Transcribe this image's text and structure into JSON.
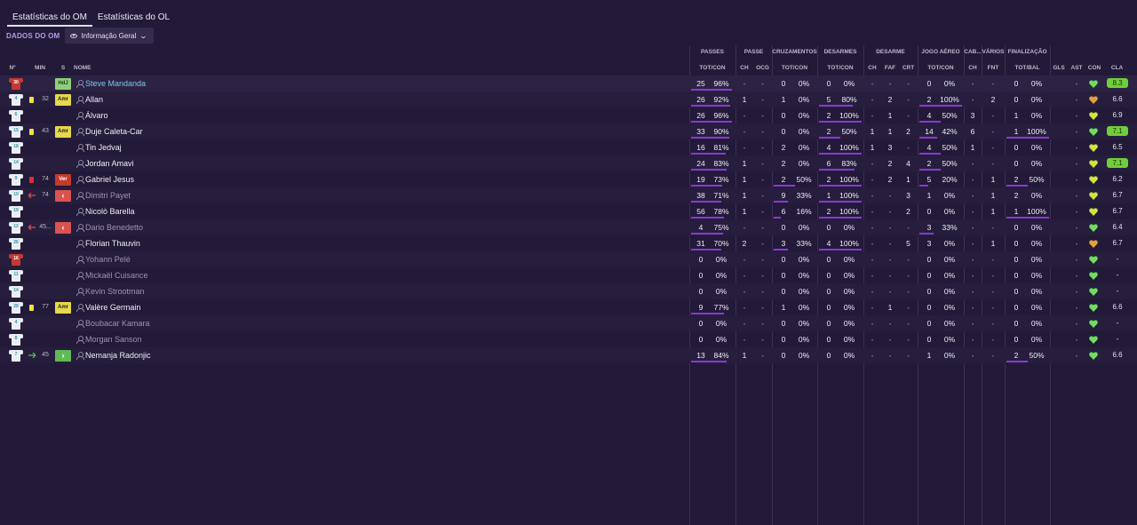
{
  "tabs": [
    {
      "label": "Estatísticas do OM",
      "active": true
    },
    {
      "label": "Estatísticas do OL",
      "active": false
    }
  ],
  "club_label": "DADOS DO OM",
  "view_select": {
    "label": "Informação Geral",
    "icon": "eye-icon"
  },
  "columns": {
    "left": [
      "Nº",
      "MIN",
      "S",
      "NOME"
    ],
    "groups": [
      "PASSES",
      "PASSE",
      "CRUZAMENTOS",
      "DESARMES",
      "DESARME",
      "JOGO AÉREO",
      "CAB...",
      "VÁRIOS",
      "FINALIZAÇÃO"
    ],
    "stats": [
      "TOT/CON",
      "CH",
      "OCG",
      "TOT/CON",
      "TOT/CON",
      "CH",
      "FAF",
      "CRT",
      "TOT/CON",
      "CH",
      "FNT",
      "TOT/BAL",
      "GLS",
      "AST",
      "CON",
      "CLA"
    ]
  },
  "colors": {
    "background": "#231a39",
    "accent": "#8b38d6",
    "rating_high": "#6fcf3a",
    "link": "#7cc6e8"
  },
  "players": [
    {
      "num": "30",
      "gk": true,
      "card": "",
      "sub": "",
      "min": "",
      "pos": "HdJ",
      "pos_type": "hdj",
      "name": "Steve Mandanda",
      "name_style": "link",
      "pass_tot": "25",
      "pass_pct": "96%",
      "pass_bar": 0.96,
      "pass_ch": "-",
      "pass_ocg": "-",
      "cross_tot": "0",
      "cross_pct": "0%",
      "cross_bar": 0,
      "tack_tot": "0",
      "tack_pct": "0%",
      "tack_bar": 0,
      "des_ch": "-",
      "des_faf": "-",
      "des_crt": "-",
      "air_tot": "0",
      "air_pct": "0%",
      "air_bar": 0,
      "cab_ch": "-",
      "var_fnt": "-",
      "fin_tot": "0",
      "fin_pct": "0%",
      "fin_bar": 0,
      "gls": "",
      "ast": "-",
      "con": "green",
      "cla": "8.3",
      "cla_high": true
    },
    {
      "num": "4",
      "gk": false,
      "card": "y",
      "sub": "",
      "min": "32",
      "pos": "Amr",
      "pos_type": "amr",
      "name": "Allan",
      "name_style": "",
      "pass_tot": "26",
      "pass_pct": "92%",
      "pass_bar": 0.92,
      "pass_ch": "1",
      "pass_ocg": "-",
      "cross_tot": "1",
      "cross_pct": "0%",
      "cross_bar": 0,
      "tack_tot": "5",
      "tack_pct": "80%",
      "tack_bar": 0.8,
      "des_ch": "-",
      "des_faf": "2",
      "des_crt": "-",
      "air_tot": "2",
      "air_pct": "100%",
      "air_bar": 1,
      "cab_ch": "-",
      "var_fnt": "2",
      "fin_tot": "0",
      "fin_pct": "0%",
      "fin_bar": 0,
      "gls": "",
      "ast": "-",
      "con": "orange",
      "cla": "6.6",
      "cla_high": false
    },
    {
      "num": "6",
      "gk": false,
      "card": "",
      "sub": "",
      "min": "",
      "pos": "",
      "pos_type": "",
      "name": "Álvaro",
      "name_style": "",
      "pass_tot": "26",
      "pass_pct": "96%",
      "pass_bar": 0.96,
      "pass_ch": "-",
      "pass_ocg": "-",
      "cross_tot": "0",
      "cross_pct": "0%",
      "cross_bar": 0,
      "tack_tot": "2",
      "tack_pct": "100%",
      "tack_bar": 1,
      "des_ch": "-",
      "des_faf": "1",
      "des_crt": "-",
      "air_tot": "4",
      "air_pct": "50%",
      "air_bar": 0.5,
      "cab_ch": "3",
      "var_fnt": "-",
      "fin_tot": "1",
      "fin_pct": "0%",
      "fin_bar": 0,
      "gls": "",
      "ast": "-",
      "con": "yellow",
      "cla": "6.9",
      "cla_high": false
    },
    {
      "num": "15",
      "gk": false,
      "card": "y",
      "sub": "",
      "min": "43",
      "pos": "Amr",
      "pos_type": "amr",
      "name": "Duje Caleta-Car",
      "name_style": "",
      "pass_tot": "33",
      "pass_pct": "90%",
      "pass_bar": 0.9,
      "pass_ch": "-",
      "pass_ocg": "-",
      "cross_tot": "0",
      "cross_pct": "0%",
      "cross_bar": 0,
      "tack_tot": "2",
      "tack_pct": "50%",
      "tack_bar": 0.5,
      "des_ch": "1",
      "des_faf": "1",
      "des_crt": "2",
      "air_tot": "14",
      "air_pct": "42%",
      "air_bar": 0.42,
      "cab_ch": "6",
      "var_fnt": "-",
      "fin_tot": "1",
      "fin_pct": "100%",
      "fin_bar": 1,
      "gls": "",
      "ast": "-",
      "con": "green",
      "cla": "7.1",
      "cla_high": true
    },
    {
      "num": "18",
      "gk": false,
      "card": "",
      "sub": "",
      "min": "",
      "pos": "",
      "pos_type": "",
      "name": "Tin Jedvaj",
      "name_style": "",
      "pass_tot": "16",
      "pass_pct": "81%",
      "pass_bar": 0.81,
      "pass_ch": "-",
      "pass_ocg": "-",
      "cross_tot": "2",
      "cross_pct": "0%",
      "cross_bar": 0,
      "tack_tot": "4",
      "tack_pct": "100%",
      "tack_bar": 1,
      "des_ch": "1",
      "des_faf": "3",
      "des_crt": "-",
      "air_tot": "4",
      "air_pct": "50%",
      "air_bar": 0.5,
      "cab_ch": "1",
      "var_fnt": "-",
      "fin_tot": "0",
      "fin_pct": "0%",
      "fin_bar": 0,
      "gls": "",
      "ast": "-",
      "con": "yellow",
      "cla": "6.5",
      "cla_high": false
    },
    {
      "num": "14",
      "gk": false,
      "card": "",
      "sub": "",
      "min": "",
      "pos": "",
      "pos_type": "",
      "name": "Jordan Amavi",
      "name_style": "",
      "pass_tot": "24",
      "pass_pct": "83%",
      "pass_bar": 0.83,
      "pass_ch": "1",
      "pass_ocg": "-",
      "cross_tot": "2",
      "cross_pct": "0%",
      "cross_bar": 0,
      "tack_tot": "6",
      "tack_pct": "83%",
      "tack_bar": 0.83,
      "des_ch": "-",
      "des_faf": "2",
      "des_crt": "4",
      "air_tot": "2",
      "air_pct": "50%",
      "air_bar": 0.5,
      "cab_ch": "-",
      "var_fnt": "-",
      "fin_tot": "0",
      "fin_pct": "0%",
      "fin_bar": 0,
      "gls": "",
      "ast": "-",
      "con": "yellow",
      "cla": "7.1",
      "cla_high": true
    },
    {
      "num": "9",
      "gk": false,
      "card": "r",
      "sub": "",
      "min": "74",
      "pos": "Ver",
      "pos_type": "ver",
      "name": "Gabriel Jesus",
      "name_style": "",
      "pass_tot": "19",
      "pass_pct": "73%",
      "pass_bar": 0.73,
      "pass_ch": "1",
      "pass_ocg": "-",
      "cross_tot": "2",
      "cross_pct": "50%",
      "cross_bar": 0.5,
      "tack_tot": "2",
      "tack_pct": "100%",
      "tack_bar": 1,
      "des_ch": "-",
      "des_faf": "2",
      "des_crt": "1",
      "air_tot": "5",
      "air_pct": "20%",
      "air_bar": 0.2,
      "cab_ch": "-",
      "var_fnt": "1",
      "fin_tot": "2",
      "fin_pct": "50%",
      "fin_bar": 0.5,
      "gls": "",
      "ast": "-",
      "con": "yellow",
      "cla": "6.2",
      "cla_high": false
    },
    {
      "num": "10",
      "gk": false,
      "card": "",
      "sub": "out",
      "min": "74",
      "pos": "‹",
      "pos_type": "out",
      "name": "Dimitri Payet",
      "name_style": "dim",
      "pass_tot": "38",
      "pass_pct": "71%",
      "pass_bar": 0.71,
      "pass_ch": "1",
      "pass_ocg": "-",
      "cross_tot": "9",
      "cross_pct": "33%",
      "cross_bar": 0.33,
      "tack_tot": "1",
      "tack_pct": "100%",
      "tack_bar": 1,
      "des_ch": "-",
      "des_faf": "-",
      "des_crt": "3",
      "air_tot": "1",
      "air_pct": "0%",
      "air_bar": 0,
      "cab_ch": "-",
      "var_fnt": "1",
      "fin_tot": "2",
      "fin_pct": "0%",
      "fin_bar": 0,
      "gls": "",
      "ast": "-",
      "con": "yellow",
      "cla": "6.7",
      "cla_high": false
    },
    {
      "num": "19",
      "gk": false,
      "card": "",
      "sub": "",
      "min": "",
      "pos": "",
      "pos_type": "",
      "name": "Nicolò Barella",
      "name_style": "",
      "pass_tot": "56",
      "pass_pct": "78%",
      "pass_bar": 0.78,
      "pass_ch": "1",
      "pass_ocg": "-",
      "cross_tot": "6",
      "cross_pct": "16%",
      "cross_bar": 0.16,
      "tack_tot": "2",
      "tack_pct": "100%",
      "tack_bar": 1,
      "des_ch": "-",
      "des_faf": "-",
      "des_crt": "2",
      "air_tot": "0",
      "air_pct": "0%",
      "air_bar": 0,
      "cab_ch": "-",
      "var_fnt": "1",
      "fin_tot": "1",
      "fin_pct": "100%",
      "fin_bar": 1,
      "gls": "",
      "ast": "-",
      "con": "yellow",
      "cla": "6.7",
      "cla_high": false
    },
    {
      "num": "12",
      "gk": false,
      "card": "",
      "sub": "out",
      "min": "45...",
      "pos": "‹",
      "pos_type": "out",
      "name": "Dario Benedetto",
      "name_style": "dim",
      "pass_tot": "4",
      "pass_pct": "75%",
      "pass_bar": 0.75,
      "pass_ch": "-",
      "pass_ocg": "-",
      "cross_tot": "0",
      "cross_pct": "0%",
      "cross_bar": 0,
      "tack_tot": "0",
      "tack_pct": "0%",
      "tack_bar": 0,
      "des_ch": "-",
      "des_faf": "-",
      "des_crt": "-",
      "air_tot": "3",
      "air_pct": "33%",
      "air_bar": 0.33,
      "cab_ch": "-",
      "var_fnt": "-",
      "fin_tot": "0",
      "fin_pct": "0%",
      "fin_bar": 0,
      "gls": "",
      "ast": "-",
      "con": "green",
      "cla": "6.4",
      "cla_high": false
    },
    {
      "num": "26",
      "gk": false,
      "card": "",
      "sub": "",
      "min": "",
      "pos": "",
      "pos_type": "",
      "name": "Florian Thauvin",
      "name_style": "",
      "pass_tot": "31",
      "pass_pct": "70%",
      "pass_bar": 0.7,
      "pass_ch": "2",
      "pass_ocg": "-",
      "cross_tot": "3",
      "cross_pct": "33%",
      "cross_bar": 0.33,
      "tack_tot": "4",
      "tack_pct": "100%",
      "tack_bar": 1,
      "des_ch": "-",
      "des_faf": "-",
      "des_crt": "5",
      "air_tot": "3",
      "air_pct": "0%",
      "air_bar": 0,
      "cab_ch": "-",
      "var_fnt": "1",
      "fin_tot": "0",
      "fin_pct": "0%",
      "fin_bar": 0,
      "gls": "",
      "ast": "-",
      "con": "orange",
      "cla": "6.7",
      "cla_high": false
    },
    {
      "num": "16",
      "gk": true,
      "card": "",
      "sub": "",
      "min": "",
      "pos": "",
      "pos_type": "",
      "name": "Yohann Pelé",
      "name_style": "dim",
      "pass_tot": "0",
      "pass_pct": "0%",
      "pass_bar": 0,
      "pass_ch": "-",
      "pass_ocg": "-",
      "cross_tot": "0",
      "cross_pct": "0%",
      "cross_bar": 0,
      "tack_tot": "0",
      "tack_pct": "0%",
      "tack_bar": 0,
      "des_ch": "-",
      "des_faf": "-",
      "des_crt": "-",
      "air_tot": "0",
      "air_pct": "0%",
      "air_bar": 0,
      "cab_ch": "-",
      "var_fnt": "-",
      "fin_tot": "0",
      "fin_pct": "0%",
      "fin_bar": 0,
      "gls": "",
      "ast": "-",
      "con": "green",
      "cla": "-",
      "cla_high": false
    },
    {
      "num": "11",
      "gk": false,
      "card": "",
      "sub": "",
      "min": "",
      "pos": "",
      "pos_type": "",
      "name": "Mickaël Cuisance",
      "name_style": "dim",
      "pass_tot": "0",
      "pass_pct": "0%",
      "pass_bar": 0,
      "pass_ch": "-",
      "pass_ocg": "-",
      "cross_tot": "0",
      "cross_pct": "0%",
      "cross_bar": 0,
      "tack_tot": "0",
      "tack_pct": "0%",
      "tack_bar": 0,
      "des_ch": "-",
      "des_faf": "-",
      "des_crt": "-",
      "air_tot": "0",
      "air_pct": "0%",
      "air_bar": 0,
      "cab_ch": "-",
      "var_fnt": "-",
      "fin_tot": "0",
      "fin_pct": "0%",
      "fin_bar": 0,
      "gls": "",
      "ast": "-",
      "con": "green",
      "cla": "-",
      "cla_high": false
    },
    {
      "num": "14",
      "gk": false,
      "card": "",
      "sub": "",
      "min": "",
      "pos": "",
      "pos_type": "",
      "name": "Kevin Strootman",
      "name_style": "dim",
      "pass_tot": "0",
      "pass_pct": "0%",
      "pass_bar": 0,
      "pass_ch": "-",
      "pass_ocg": "-",
      "cross_tot": "0",
      "cross_pct": "0%",
      "cross_bar": 0,
      "tack_tot": "0",
      "tack_pct": "0%",
      "tack_bar": 0,
      "des_ch": "-",
      "des_faf": "-",
      "des_crt": "-",
      "air_tot": "0",
      "air_pct": "0%",
      "air_bar": 0,
      "cab_ch": "-",
      "var_fnt": "-",
      "fin_tot": "0",
      "fin_pct": "0%",
      "fin_bar": 0,
      "gls": "",
      "ast": "-",
      "con": "green",
      "cla": "-",
      "cla_high": false
    },
    {
      "num": "28",
      "gk": false,
      "card": "y",
      "sub": "",
      "min": "77",
      "pos": "Amr",
      "pos_type": "amr",
      "name": "Valère Germain",
      "name_style": "",
      "pass_tot": "9",
      "pass_pct": "77%",
      "pass_bar": 0.77,
      "pass_ch": "-",
      "pass_ocg": "-",
      "cross_tot": "1",
      "cross_pct": "0%",
      "cross_bar": 0,
      "tack_tot": "0",
      "tack_pct": "0%",
      "tack_bar": 0,
      "des_ch": "-",
      "des_faf": "1",
      "des_crt": "-",
      "air_tot": "0",
      "air_pct": "0%",
      "air_bar": 0,
      "cab_ch": "-",
      "var_fnt": "-",
      "fin_tot": "0",
      "fin_pct": "0%",
      "fin_bar": 0,
      "gls": "",
      "ast": "-",
      "con": "green",
      "cla": "6.6",
      "cla_high": false
    },
    {
      "num": "4",
      "gk": false,
      "card": "",
      "sub": "",
      "min": "",
      "pos": "",
      "pos_type": "",
      "name": "Boubacar Kamara",
      "name_style": "dim",
      "pass_tot": "0",
      "pass_pct": "0%",
      "pass_bar": 0,
      "pass_ch": "-",
      "pass_ocg": "-",
      "cross_tot": "0",
      "cross_pct": "0%",
      "cross_bar": 0,
      "tack_tot": "0",
      "tack_pct": "0%",
      "tack_bar": 0,
      "des_ch": "-",
      "des_faf": "-",
      "des_crt": "-",
      "air_tot": "0",
      "air_pct": "0%",
      "air_bar": 0,
      "cab_ch": "-",
      "var_fnt": "-",
      "fin_tot": "0",
      "fin_pct": "0%",
      "fin_bar": 0,
      "gls": "",
      "ast": "-",
      "con": "green",
      "cla": "-",
      "cla_high": false
    },
    {
      "num": "8",
      "gk": false,
      "card": "",
      "sub": "",
      "min": "",
      "pos": "",
      "pos_type": "",
      "name": "Morgan Sanson",
      "name_style": "dim",
      "pass_tot": "0",
      "pass_pct": "0%",
      "pass_bar": 0,
      "pass_ch": "-",
      "pass_ocg": "-",
      "cross_tot": "0",
      "cross_pct": "0%",
      "cross_bar": 0,
      "tack_tot": "0",
      "tack_pct": "0%",
      "tack_bar": 0,
      "des_ch": "-",
      "des_faf": "-",
      "des_crt": "-",
      "air_tot": "0",
      "air_pct": "0%",
      "air_bar": 0,
      "cab_ch": "-",
      "var_fnt": "-",
      "fin_tot": "0",
      "fin_pct": "0%",
      "fin_bar": 0,
      "gls": "",
      "ast": "-",
      "con": "green",
      "cla": "-",
      "cla_high": false
    },
    {
      "num": "7",
      "gk": false,
      "card": "",
      "sub": "in",
      "min": "45",
      "pos": "›",
      "pos_type": "in",
      "name": "Nemanja Radonjic",
      "name_style": "",
      "pass_tot": "13",
      "pass_pct": "84%",
      "pass_bar": 0.84,
      "pass_ch": "1",
      "pass_ocg": "-",
      "cross_tot": "0",
      "cross_pct": "0%",
      "cross_bar": 0,
      "tack_tot": "0",
      "tack_pct": "0%",
      "tack_bar": 0,
      "des_ch": "-",
      "des_faf": "-",
      "des_crt": "-",
      "air_tot": "1",
      "air_pct": "0%",
      "air_bar": 0,
      "cab_ch": "-",
      "var_fnt": "-",
      "fin_tot": "2",
      "fin_pct": "50%",
      "fin_bar": 0.5,
      "gls": "",
      "ast": "-",
      "con": "green",
      "cla": "6.6",
      "cla_high": false
    }
  ]
}
